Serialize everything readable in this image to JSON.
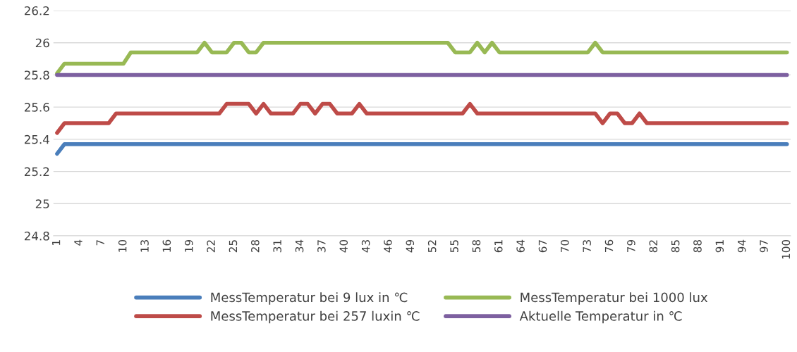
{
  "chart_data": {
    "type": "line",
    "categories": [
      "1",
      null,
      null,
      "4",
      null,
      null,
      "7",
      null,
      null,
      "10",
      null,
      null,
      "13",
      null,
      null,
      "16",
      null,
      null,
      "19",
      null,
      null,
      "22",
      null,
      null,
      "25",
      null,
      null,
      "28",
      null,
      null,
      "31",
      null,
      null,
      "34",
      null,
      null,
      "37",
      null,
      null,
      "40",
      null,
      null,
      "43",
      null,
      null,
      "46",
      null,
      null,
      "49",
      null,
      null,
      "52",
      null,
      null,
      "55",
      null,
      null,
      "58",
      null,
      null,
      "61",
      null,
      null,
      "64",
      null,
      null,
      "67",
      null,
      null,
      "70",
      null,
      null,
      "73",
      null,
      null,
      "76",
      null,
      null,
      "79",
      null,
      null,
      "82",
      null,
      null,
      "85",
      null,
      null,
      "88",
      null,
      null,
      "91",
      null,
      null,
      "94",
      null,
      null,
      "97",
      null,
      null,
      "100"
    ],
    "series": [
      {
        "name": "MessTemperatur bei 9 lux in ℃",
        "color": "#4a7ebb",
        "values": [
          25.31,
          25.37,
          25.37,
          25.37,
          25.37,
          25.37,
          25.37,
          25.37,
          25.37,
          25.37,
          25.37,
          25.37,
          25.37,
          25.37,
          25.37,
          25.37,
          25.37,
          25.37,
          25.37,
          25.37,
          25.37,
          25.37,
          25.37,
          25.37,
          25.37,
          25.37,
          25.37,
          25.37,
          25.37,
          25.37,
          25.37,
          25.37,
          25.37,
          25.37,
          25.37,
          25.37,
          25.37,
          25.37,
          25.37,
          25.37,
          25.37,
          25.37,
          25.37,
          25.37,
          25.37,
          25.37,
          25.37,
          25.37,
          25.37,
          25.37,
          25.37,
          25.37,
          25.37,
          25.37,
          25.37,
          25.37,
          25.37,
          25.37,
          25.37,
          25.37,
          25.37,
          25.37,
          25.37,
          25.37,
          25.37,
          25.37,
          25.37,
          25.37,
          25.37,
          25.37,
          25.37,
          25.37,
          25.37,
          25.37,
          25.37,
          25.37,
          25.37,
          25.37,
          25.37,
          25.37,
          25.37,
          25.37,
          25.37,
          25.37,
          25.37,
          25.37,
          25.37,
          25.37,
          25.37,
          25.37,
          25.37,
          25.37,
          25.37,
          25.37,
          25.37,
          25.37,
          25.37,
          25.37,
          25.37,
          25.37
        ]
      },
      {
        "name": "MessTemperatur bei 257 luxin ℃",
        "color": "#be4b48",
        "values": [
          25.44,
          25.5,
          25.5,
          25.5,
          25.5,
          25.5,
          25.5,
          25.5,
          25.56,
          25.56,
          25.56,
          25.56,
          25.56,
          25.56,
          25.56,
          25.56,
          25.56,
          25.56,
          25.56,
          25.56,
          25.56,
          25.56,
          25.56,
          25.62,
          25.62,
          25.62,
          25.62,
          25.56,
          25.62,
          25.56,
          25.56,
          25.56,
          25.56,
          25.62,
          25.62,
          25.56,
          25.62,
          25.62,
          25.56,
          25.56,
          25.56,
          25.62,
          25.56,
          25.56,
          25.56,
          25.56,
          25.56,
          25.56,
          25.56,
          25.56,
          25.56,
          25.56,
          25.56,
          25.56,
          25.56,
          25.56,
          25.62,
          25.56,
          25.56,
          25.56,
          25.56,
          25.56,
          25.56,
          25.56,
          25.56,
          25.56,
          25.56,
          25.56,
          25.56,
          25.56,
          25.56,
          25.56,
          25.56,
          25.56,
          25.5,
          25.56,
          25.56,
          25.5,
          25.5,
          25.56,
          25.5,
          25.5,
          25.5,
          25.5,
          25.5,
          25.5,
          25.5,
          25.5,
          25.5,
          25.5,
          25.5,
          25.5,
          25.5,
          25.5,
          25.5,
          25.5,
          25.5,
          25.5,
          25.5,
          25.5
        ]
      },
      {
        "name": "MessTemperatur bei 1000 lux",
        "color": "#98b954",
        "values": [
          25.81,
          25.87,
          25.87,
          25.87,
          25.87,
          25.87,
          25.87,
          25.87,
          25.87,
          25.87,
          25.94,
          25.94,
          25.94,
          25.94,
          25.94,
          25.94,
          25.94,
          25.94,
          25.94,
          25.94,
          26,
          25.94,
          25.94,
          25.94,
          26,
          26,
          25.94,
          25.94,
          26,
          26,
          26,
          26,
          26,
          26,
          26,
          26,
          26,
          26,
          26,
          26,
          26,
          26,
          26,
          26,
          26,
          26,
          26,
          26,
          26,
          26,
          26,
          26,
          26,
          26,
          25.94,
          25.94,
          25.94,
          26,
          25.94,
          26,
          25.94,
          25.94,
          25.94,
          25.94,
          25.94,
          25.94,
          25.94,
          25.94,
          25.94,
          25.94,
          25.94,
          25.94,
          25.94,
          26,
          25.94,
          25.94,
          25.94,
          25.94,
          25.94,
          25.94,
          25.94,
          25.94,
          25.94,
          25.94,
          25.94,
          25.94,
          25.94,
          25.94,
          25.94,
          25.94,
          25.94,
          25.94,
          25.94,
          25.94,
          25.94,
          25.94,
          25.94,
          25.94,
          25.94,
          25.94
        ]
      },
      {
        "name": "Aktuelle Temperatur in ℃",
        "color": "#7d60a0",
        "values": [
          25.8,
          25.8,
          25.8,
          25.8,
          25.8,
          25.8,
          25.8,
          25.8,
          25.8,
          25.8,
          25.8,
          25.8,
          25.8,
          25.8,
          25.8,
          25.8,
          25.8,
          25.8,
          25.8,
          25.8,
          25.8,
          25.8,
          25.8,
          25.8,
          25.8,
          25.8,
          25.8,
          25.8,
          25.8,
          25.8,
          25.8,
          25.8,
          25.8,
          25.8,
          25.8,
          25.8,
          25.8,
          25.8,
          25.8,
          25.8,
          25.8,
          25.8,
          25.8,
          25.8,
          25.8,
          25.8,
          25.8,
          25.8,
          25.8,
          25.8,
          25.8,
          25.8,
          25.8,
          25.8,
          25.8,
          25.8,
          25.8,
          25.8,
          25.8,
          25.8,
          25.8,
          25.8,
          25.8,
          25.8,
          25.8,
          25.8,
          25.8,
          25.8,
          25.8,
          25.8,
          25.8,
          25.8,
          25.8,
          25.8,
          25.8,
          25.8,
          25.8,
          25.8,
          25.8,
          25.8,
          25.8,
          25.8,
          25.8,
          25.8,
          25.8,
          25.8,
          25.8,
          25.8,
          25.8,
          25.8,
          25.8,
          25.8,
          25.8,
          25.8,
          25.8,
          25.8,
          25.8,
          25.8,
          25.8,
          25.8
        ]
      }
    ],
    "ylim": [
      24.8,
      26.2
    ],
    "yticks": [
      24.8,
      25,
      25.2,
      25.4,
      25.6,
      25.8,
      26,
      26.2
    ],
    "grid": "y",
    "legend": "bottom",
    "marker": "none",
    "line_style": "solid"
  }
}
